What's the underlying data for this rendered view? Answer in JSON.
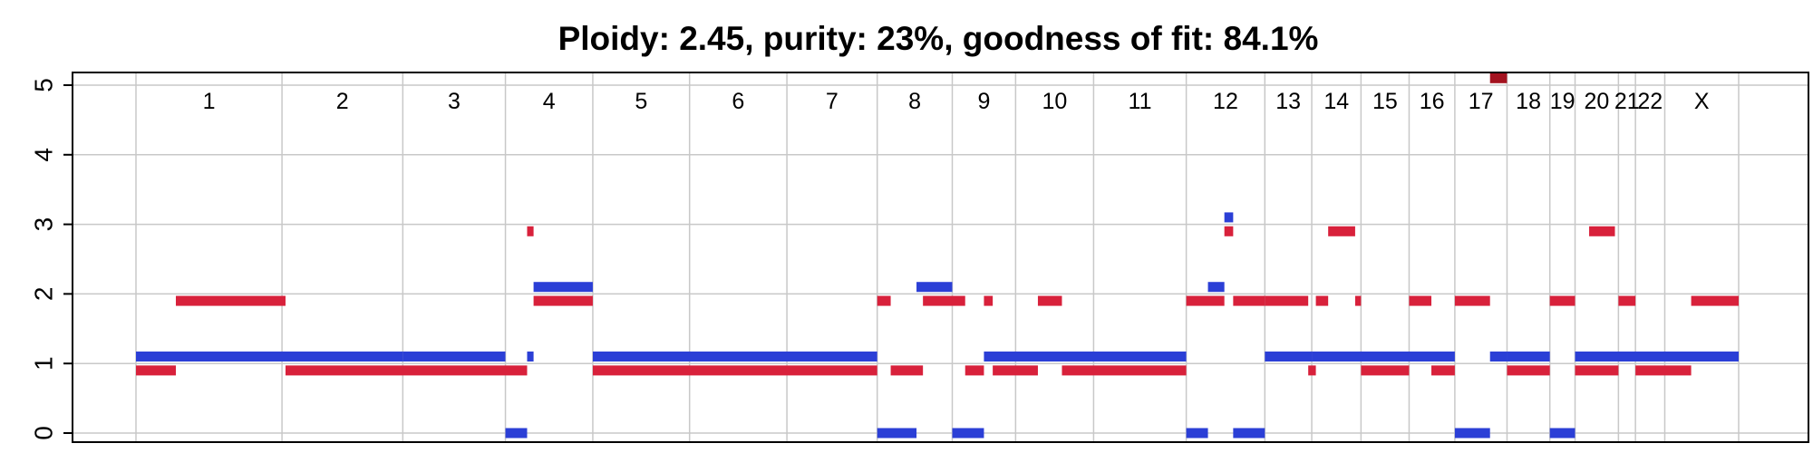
{
  "chart_data": {
    "type": "segment",
    "title": "Ploidy: 2.45, purity: 23%, goodness of fit: 84.1%",
    "ylim": [
      0,
      5
    ],
    "yticks": [
      0,
      1,
      2,
      3,
      4,
      5
    ],
    "grid": true,
    "colors": {
      "major": "#d8213b",
      "minor": "#2b3fd6",
      "grid": "#c8c8c8",
      "clipped": "#a3121f"
    },
    "chromosomes": [
      {
        "name": "1",
        "start": 0,
        "end": 249
      },
      {
        "name": "2",
        "start": 249,
        "end": 455
      },
      {
        "name": "3",
        "start": 455,
        "end": 630
      },
      {
        "name": "4",
        "start": 630,
        "end": 779
      },
      {
        "name": "5",
        "start": 779,
        "end": 944
      },
      {
        "name": "6",
        "start": 944,
        "end": 1110
      },
      {
        "name": "7",
        "start": 1110,
        "end": 1264
      },
      {
        "name": "8",
        "start": 1264,
        "end": 1392
      },
      {
        "name": "9",
        "start": 1392,
        "end": 1500
      },
      {
        "name": "10",
        "start": 1500,
        "end": 1633
      },
      {
        "name": "11",
        "start": 1633,
        "end": 1791
      },
      {
        "name": "12",
        "start": 1791,
        "end": 1925
      },
      {
        "name": "13",
        "start": 1925,
        "end": 2005
      },
      {
        "name": "14",
        "start": 2005,
        "end": 2089
      },
      {
        "name": "15",
        "start": 2089,
        "end": 2171
      },
      {
        "name": "16",
        "start": 2171,
        "end": 2249
      },
      {
        "name": "17",
        "start": 2249,
        "end": 2338
      },
      {
        "name": "18",
        "start": 2338,
        "end": 2411
      },
      {
        "name": "19",
        "start": 2411,
        "end": 2454
      },
      {
        "name": "20",
        "start": 2454,
        "end": 2528
      },
      {
        "name": "21",
        "start": 2528,
        "end": 2557
      },
      {
        "name": "22",
        "start": 2557,
        "end": 2607
      },
      {
        "name": "X",
        "start": 2607,
        "end": 2733
      }
    ],
    "major_segments": [
      {
        "start": 0,
        "end": 68,
        "cn": 0.9
      },
      {
        "start": 68,
        "end": 255,
        "cn": 1.9
      },
      {
        "start": 255,
        "end": 667,
        "cn": 0.9
      },
      {
        "start": 667,
        "end": 678,
        "cn": 2.9
      },
      {
        "start": 678,
        "end": 779,
        "cn": 1.9
      },
      {
        "start": 779,
        "end": 1264,
        "cn": 0.9
      },
      {
        "start": 1264,
        "end": 1287,
        "cn": 1.9
      },
      {
        "start": 1287,
        "end": 1342,
        "cn": 0.9
      },
      {
        "start": 1342,
        "end": 1414,
        "cn": 1.9
      },
      {
        "start": 1414,
        "end": 1446,
        "cn": 0.9
      },
      {
        "start": 1446,
        "end": 1461,
        "cn": 1.9
      },
      {
        "start": 1461,
        "end": 1538,
        "cn": 0.9
      },
      {
        "start": 1538,
        "end": 1579,
        "cn": 1.9
      },
      {
        "start": 1579,
        "end": 1791,
        "cn": 0.9
      },
      {
        "start": 1791,
        "end": 1856,
        "cn": 1.9
      },
      {
        "start": 1856,
        "end": 1871,
        "cn": 2.9
      },
      {
        "start": 1871,
        "end": 1925,
        "cn": 1.9
      },
      {
        "start": 1925,
        "end": 1999,
        "cn": 1.9
      },
      {
        "start": 1999,
        "end": 2012,
        "cn": 0.9
      },
      {
        "start": 2012,
        "end": 2033,
        "cn": 1.9
      },
      {
        "start": 2033,
        "end": 2079,
        "cn": 2.9
      },
      {
        "start": 2079,
        "end": 2089,
        "cn": 1.9
      },
      {
        "start": 2089,
        "end": 2171,
        "cn": 0.9
      },
      {
        "start": 2171,
        "end": 2209,
        "cn": 1.9
      },
      {
        "start": 2209,
        "end": 2249,
        "cn": 0.9
      },
      {
        "start": 2249,
        "end": 2309,
        "cn": 1.9
      },
      {
        "start": 2309,
        "end": 2338,
        "cn": 5.1
      },
      {
        "start": 2338,
        "end": 2411,
        "cn": 0.9
      },
      {
        "start": 2411,
        "end": 2454,
        "cn": 1.9
      },
      {
        "start": 2454,
        "end": 2528,
        "cn": 0.9
      },
      {
        "start": 2478,
        "end": 2522,
        "cn": 2.9
      },
      {
        "start": 2528,
        "end": 2557,
        "cn": 1.9
      },
      {
        "start": 2557,
        "end": 2652,
        "cn": 0.9
      },
      {
        "start": 2652,
        "end": 2733,
        "cn": 1.9
      }
    ],
    "minor_segments": [
      {
        "start": 0,
        "end": 455,
        "cn": 1.1
      },
      {
        "start": 455,
        "end": 630,
        "cn": 1.1
      },
      {
        "start": 630,
        "end": 667,
        "cn": 0
      },
      {
        "start": 667,
        "end": 678,
        "cn": 1.1
      },
      {
        "start": 678,
        "end": 779,
        "cn": 2.1
      },
      {
        "start": 779,
        "end": 1264,
        "cn": 1.1
      },
      {
        "start": 1264,
        "end": 1331,
        "cn": 0
      },
      {
        "start": 1331,
        "end": 1392,
        "cn": 2.1
      },
      {
        "start": 1392,
        "end": 1446,
        "cn": 0
      },
      {
        "start": 1446,
        "end": 1791,
        "cn": 1.1
      },
      {
        "start": 1791,
        "end": 1828,
        "cn": 0
      },
      {
        "start": 1828,
        "end": 1856,
        "cn": 2.1
      },
      {
        "start": 1856,
        "end": 1871,
        "cn": 3.1
      },
      {
        "start": 1871,
        "end": 1925,
        "cn": 0
      },
      {
        "start": 1925,
        "end": 2005,
        "cn": 1.1
      },
      {
        "start": 2005,
        "end": 2249,
        "cn": 1.1
      },
      {
        "start": 2249,
        "end": 2309,
        "cn": 0
      },
      {
        "start": 2309,
        "end": 2338,
        "cn": 1.1
      },
      {
        "start": 2338,
        "end": 2411,
        "cn": 1.1
      },
      {
        "start": 2411,
        "end": 2454,
        "cn": 0
      },
      {
        "start": 2454,
        "end": 2733,
        "cn": 1.1
      }
    ]
  }
}
